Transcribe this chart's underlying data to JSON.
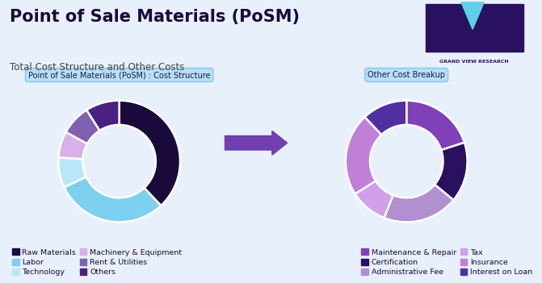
{
  "title": "Point of Sale Materials (PoSM)",
  "subtitle": "Total Cost Structure and Other Costs",
  "background_color": "#e8f0fb",
  "chart1_label": "Point of Sale Materials (PoSM) : Cost Structure",
  "chart2_label": "Other Cost Breakup",
  "chart1_values": [
    38,
    30,
    8,
    7,
    8,
    9
  ],
  "chart1_labels": [
    "Raw Materials",
    "Labor",
    "Technology",
    "Machinery & Equipment",
    "Rent & Utilities",
    "Others"
  ],
  "chart1_colors": [
    "#1a0a3c",
    "#7dd0f0",
    "#b8e8f8",
    "#d9b0e8",
    "#8060b0",
    "#4a2080"
  ],
  "chart2_values": [
    20,
    16,
    20,
    10,
    22,
    12
  ],
  "chart2_labels": [
    "Maintenance & Repair",
    "Certification",
    "Administrative Fee",
    "Tax",
    "Insurance",
    "Interest on Loan"
  ],
  "chart2_colors": [
    "#8040b8",
    "#2a1060",
    "#b090d0",
    "#d0a0e8",
    "#c080d8",
    "#5030a0"
  ],
  "donut_width": 0.4,
  "arrow_color": "#7040b0",
  "label_box_color": "#b8dff8",
  "label_box_edge": "#90c8f0",
  "label_text_color": "#1a1a4a",
  "title_color": "#1a0a3c",
  "subtitle_color": "#444444"
}
